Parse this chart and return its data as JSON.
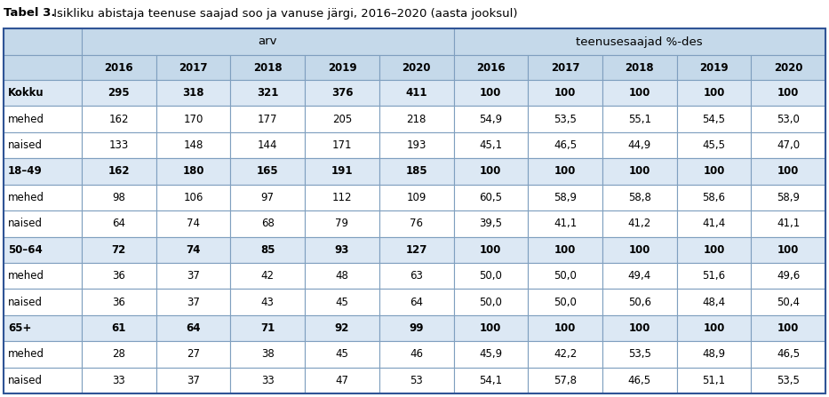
{
  "title_bold": "Tabel 3.",
  "title_rest": " Isikliku abistaja teenuse saajad soo ja vanuse järgi, 2016–2020 (aasta jooksul)",
  "header_bg": "#c5d9ea",
  "bold_row_bg": "#dce8f4",
  "normal_row_bg": "#ffffff",
  "group1_label": "arv",
  "group2_label": "teenusesaajad %-des",
  "years": [
    "2016",
    "2017",
    "2018",
    "2019",
    "2020"
  ],
  "rows": [
    {
      "label": "Kokku",
      "bold": true,
      "arv": [
        "295",
        "318",
        "321",
        "376",
        "411"
      ],
      "pct": [
        "100",
        "100",
        "100",
        "100",
        "100"
      ]
    },
    {
      "label": "mehed",
      "bold": false,
      "arv": [
        "162",
        "170",
        "177",
        "205",
        "218"
      ],
      "pct": [
        "54,9",
        "53,5",
        "55,1",
        "54,5",
        "53,0"
      ]
    },
    {
      "label": "naised",
      "bold": false,
      "arv": [
        "133",
        "148",
        "144",
        "171",
        "193"
      ],
      "pct": [
        "45,1",
        "46,5",
        "44,9",
        "45,5",
        "47,0"
      ]
    },
    {
      "label": "18–49",
      "bold": true,
      "arv": [
        "162",
        "180",
        "165",
        "191",
        "185"
      ],
      "pct": [
        "100",
        "100",
        "100",
        "100",
        "100"
      ]
    },
    {
      "label": "mehed",
      "bold": false,
      "arv": [
        "98",
        "106",
        "97",
        "112",
        "109"
      ],
      "pct": [
        "60,5",
        "58,9",
        "58,8",
        "58,6",
        "58,9"
      ]
    },
    {
      "label": "naised",
      "bold": false,
      "arv": [
        "64",
        "74",
        "68",
        "79",
        "76"
      ],
      "pct": [
        "39,5",
        "41,1",
        "41,2",
        "41,4",
        "41,1"
      ]
    },
    {
      "label": "50–64",
      "bold": true,
      "arv": [
        "72",
        "74",
        "85",
        "93",
        "127"
      ],
      "pct": [
        "100",
        "100",
        "100",
        "100",
        "100"
      ]
    },
    {
      "label": "mehed",
      "bold": false,
      "arv": [
        "36",
        "37",
        "42",
        "48",
        "63"
      ],
      "pct": [
        "50,0",
        "50,0",
        "49,4",
        "51,6",
        "49,6"
      ]
    },
    {
      "label": "naised",
      "bold": false,
      "arv": [
        "36",
        "37",
        "43",
        "45",
        "64"
      ],
      "pct": [
        "50,0",
        "50,0",
        "50,6",
        "48,4",
        "50,4"
      ]
    },
    {
      "label": "65+",
      "bold": true,
      "arv": [
        "61",
        "64",
        "71",
        "92",
        "99"
      ],
      "pct": [
        "100",
        "100",
        "100",
        "100",
        "100"
      ]
    },
    {
      "label": "mehed",
      "bold": false,
      "arv": [
        "28",
        "27",
        "38",
        "45",
        "46"
      ],
      "pct": [
        "45,9",
        "42,2",
        "53,5",
        "48,9",
        "46,5"
      ]
    },
    {
      "label": "naised",
      "bold": false,
      "arv": [
        "33",
        "37",
        "33",
        "47",
        "53"
      ],
      "pct": [
        "54,1",
        "57,8",
        "46,5",
        "51,1",
        "53,5"
      ]
    }
  ],
  "border_color": "#7f9fbf",
  "fig_width": 9.33,
  "fig_height": 4.47,
  "dpi": 100
}
